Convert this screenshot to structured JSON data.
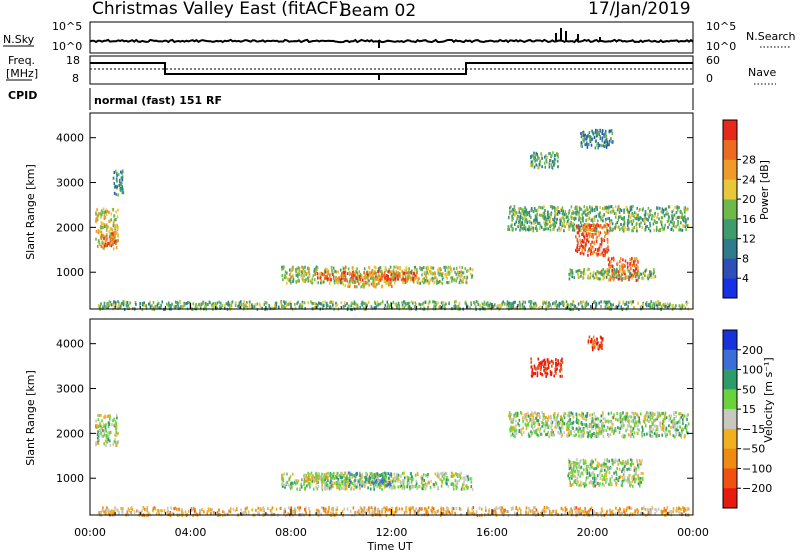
{
  "header": {
    "station": "Christmas Valley East (fitACF)",
    "beam": "Beam 02",
    "date": "17/Jan/2019"
  },
  "meta_panel": {
    "nsky_label": "N.Sky",
    "nsky_ticks": [
      "10^5",
      "10^0"
    ],
    "nsearch_label": "N.Search",
    "nsearch_ticks": [
      "10^5",
      "10^0"
    ],
    "freq_label_1": "Freq.",
    "freq_label_2": "[MHz]",
    "freq_ticks": [
      "18",
      "8"
    ],
    "nave_label": "Nave",
    "nave_ticks": [
      "60",
      "0"
    ],
    "cpid_label": "CPID",
    "cpid_text": "normal (fast) 151 RF"
  },
  "chart_data": [
    {
      "type": "heatmap",
      "name": "power-panel",
      "ylabel": "Slant Range [km]",
      "yticks": [
        1000,
        2000,
        3000,
        4000
      ],
      "ylim": [
        180,
        4550
      ],
      "xlim": [
        0,
        24
      ],
      "colorbar": {
        "label": "Power [dB]",
        "ticks": [
          4,
          8,
          12,
          16,
          20,
          24,
          28
        ],
        "colors": [
          "#1630e6",
          "#2f4fb8",
          "#2f7a8c",
          "#3f9a6e",
          "#6fb84a",
          "#e6c83a",
          "#f09a2a",
          "#ee6a22",
          "#e62a1a"
        ]
      },
      "patches": [
        {
          "t0": 0.2,
          "t1": 1.1,
          "r0": 1550,
          "r1": 2450,
          "level": 0.6
        },
        {
          "t0": 0.4,
          "t1": 1.0,
          "r0": 1600,
          "r1": 1900,
          "level": 0.85
        },
        {
          "t0": 0.9,
          "t1": 1.3,
          "r0": 2750,
          "r1": 3300,
          "level": 0.3
        },
        {
          "t0": 7.6,
          "t1": 15.2,
          "r0": 780,
          "r1": 1150,
          "level": 0.55
        },
        {
          "t0": 9.0,
          "t1": 13.0,
          "r0": 850,
          "r1": 1050,
          "level": 0.85
        },
        {
          "t0": 10.0,
          "t1": 12.0,
          "r0": 700,
          "r1": 820,
          "level": 0.7
        },
        {
          "t0": 0.3,
          "t1": 23.8,
          "r0": 200,
          "r1": 380,
          "level": 0.45
        },
        {
          "t0": 16.6,
          "t1": 23.8,
          "r0": 1950,
          "r1": 2500,
          "level": 0.45
        },
        {
          "t0": 19.3,
          "t1": 20.6,
          "r0": 1400,
          "r1": 2100,
          "level": 0.85
        },
        {
          "t0": 20.6,
          "t1": 21.8,
          "r0": 850,
          "r1": 1350,
          "level": 0.85
        },
        {
          "t0": 19.0,
          "t1": 22.5,
          "r0": 880,
          "r1": 1100,
          "level": 0.5
        },
        {
          "t0": 17.5,
          "t1": 18.6,
          "r0": 3350,
          "r1": 3700,
          "level": 0.4
        },
        {
          "t0": 19.5,
          "t1": 20.8,
          "r0": 3800,
          "r1": 4200,
          "level": 0.3
        }
      ]
    },
    {
      "type": "heatmap",
      "name": "velocity-panel",
      "ylabel": "Slant Range [km]",
      "xlabel": "Time UT",
      "xticks": [
        "00:00",
        "04:00",
        "08:00",
        "12:00",
        "16:00",
        "20:00",
        "00:00"
      ],
      "yticks": [
        1000,
        2000,
        3000,
        4000
      ],
      "ylim": [
        180,
        4550
      ],
      "xlim": [
        0,
        24
      ],
      "colorbar": {
        "label": "Velocity [m s⁻¹]",
        "ticks": [
          200,
          100,
          50,
          15,
          -15,
          -50,
          -100,
          -200
        ],
        "colors": [
          "#1632d8",
          "#3c6ed8",
          "#2f9a6a",
          "#6ad23a",
          "#c8c8c0",
          "#f0b020",
          "#f08a10",
          "#f05010",
          "#e61a10"
        ]
      },
      "patches": [
        {
          "t0": 0.2,
          "t1": 1.1,
          "r0": 1750,
          "r1": 2450,
          "level": 0.44
        },
        {
          "t0": 7.6,
          "t1": 15.2,
          "r0": 780,
          "r1": 1150,
          "level": 0.44
        },
        {
          "t0": 9.5,
          "t1": 12.0,
          "r0": 850,
          "r1": 1150,
          "level": 0.33
        },
        {
          "t0": 8.5,
          "t1": 9.5,
          "r0": 950,
          "r1": 1150,
          "level": 0.55
        },
        {
          "t0": 0.3,
          "t1": 23.8,
          "r0": 200,
          "r1": 380,
          "level": 0.62
        },
        {
          "t0": 16.6,
          "t1": 23.8,
          "r0": 1950,
          "r1": 2500,
          "level": 0.44
        },
        {
          "t0": 19.0,
          "t1": 22.0,
          "r0": 850,
          "r1": 1450,
          "level": 0.44
        },
        {
          "t0": 17.5,
          "t1": 18.8,
          "r0": 3300,
          "r1": 3700,
          "level": 0.95
        },
        {
          "t0": 19.8,
          "t1": 20.4,
          "r0": 3900,
          "r1": 4200,
          "level": 0.9
        }
      ]
    }
  ]
}
